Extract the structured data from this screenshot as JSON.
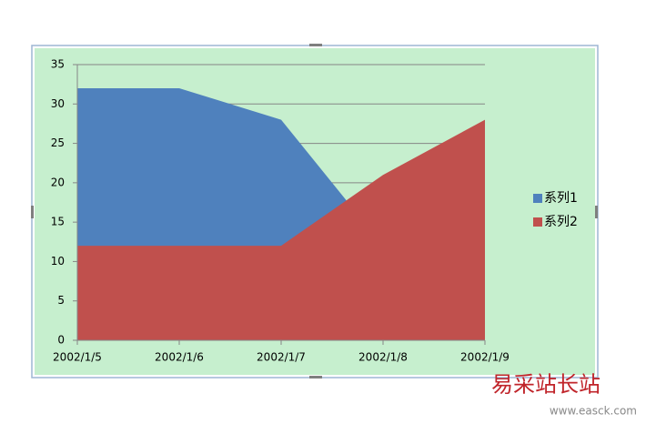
{
  "chart_data": {
    "type": "area",
    "categories": [
      "2002/1/5",
      "2002/1/6",
      "2002/1/7",
      "2002/1/8",
      "2002/1/9"
    ],
    "series": [
      {
        "name": "系列1",
        "color": "#4f81bd",
        "values": [
          32,
          32,
          28,
          12,
          10
        ]
      },
      {
        "name": "系列2",
        "color": "#c0504d",
        "values": [
          12,
          12,
          12,
          21,
          28
        ]
      }
    ],
    "ylim": [
      0,
      35
    ],
    "yticks": [
      0,
      5,
      10,
      15,
      20,
      25,
      30,
      35
    ],
    "grid": true,
    "legend": "right",
    "background": "#c6efce"
  },
  "watermark": {
    "title": "易采站长站",
    "url": "www.easck.com"
  }
}
